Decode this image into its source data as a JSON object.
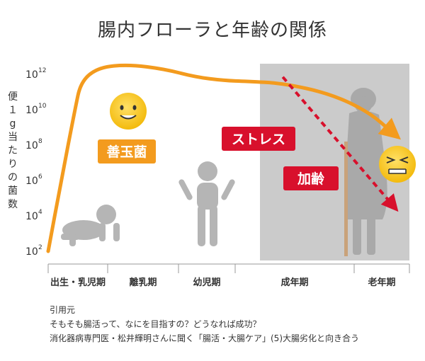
{
  "chart_data": {
    "type": "line",
    "title": "腸内フローラと年齢の関係",
    "ylabel": "便１g当たりの菌数",
    "xlabel": "",
    "y_scale": "log",
    "ylim": [
      "1e2",
      "1e12"
    ],
    "y_ticks": [
      {
        "base": "10",
        "exp": "2"
      },
      {
        "base": "10",
        "exp": "4"
      },
      {
        "base": "10",
        "exp": "6"
      },
      {
        "base": "10",
        "exp": "8"
      },
      {
        "base": "10",
        "exp": "10"
      },
      {
        "base": "10",
        "exp": "12"
      }
    ],
    "x_categories": [
      "出生・乳児期",
      "離乳期",
      "幼児期",
      "成年期",
      "老年期"
    ],
    "series": [
      {
        "name": "善玉菌",
        "color": "#F39B1E",
        "style": "solid",
        "x": [
          0.0,
          0.22,
          0.45,
          0.55,
          0.85,
          1.3,
          1.8,
          2.3,
          2.8,
          3.1,
          3.4,
          3.8,
          4.25,
          4.7
        ],
        "log10_y": [
          2.0,
          6.0,
          10.0,
          11.6,
          12.4,
          12.55,
          12.3,
          11.85,
          11.65,
          11.6,
          11.5,
          10.9,
          9.9,
          8.7
        ]
      },
      {
        "name": "ストレス・加齢",
        "color": "#D8102C",
        "style": "dashed",
        "x": [
          3.4,
          4.7
        ],
        "log10_y": [
          11.85,
          4.6
        ]
      }
    ],
    "annotations": [
      {
        "text": "善玉菌",
        "color": "#F39B1E"
      },
      {
        "text": "ストレス",
        "color": "#D8102C"
      },
      {
        "text": "加齢",
        "color": "#D8102C"
      }
    ],
    "shaded_region": {
      "from_category": "成年期",
      "to_category": "老年期",
      "color": "#CBCBCB"
    }
  },
  "source": {
    "heading": "引用元",
    "line1": "そもそも腸活って、なにを目指すの？どうなれば成功？",
    "line2": "消化器病専門医・松井輝明さんに聞く「腸活・大腸ケア」(5)大腸劣化と向き合う"
  },
  "icons": [
    "smile-face-icon",
    "grimace-face-icon",
    "baby-crawling-icon",
    "toddler-icon",
    "elderly-woman-cane-icon"
  ],
  "colors": {
    "accent": "#F39B1E",
    "alert": "#D8102C",
    "shade": "#CBCBCB",
    "figure": "#B5B5B5",
    "face": "#F5C518"
  }
}
